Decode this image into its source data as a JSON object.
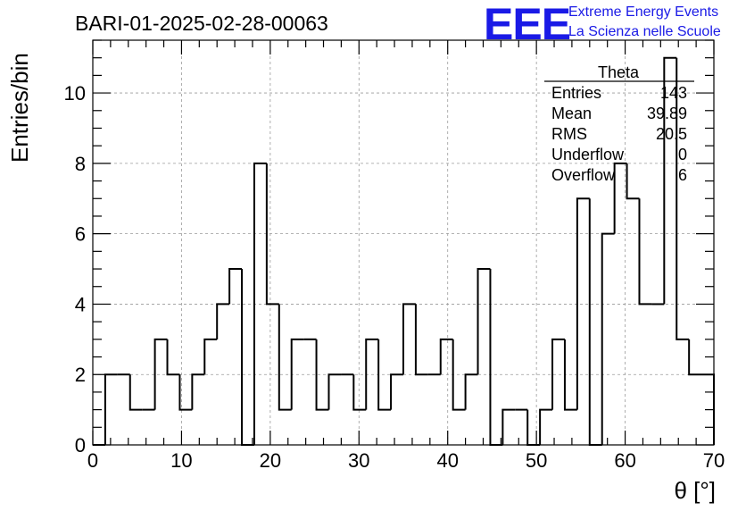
{
  "chart_data": {
    "type": "bar",
    "style": "step-histogram",
    "title": "BARI-01-2025-02-28-00063",
    "xlabel": "θ [°]",
    "ylabel": "Entries/bin",
    "xlim": [
      0,
      70
    ],
    "ylim": [
      0,
      11.5
    ],
    "grid": true,
    "bin_width": 1.4,
    "bin_start": 0,
    "values": [
      0,
      2,
      2,
      1,
      1,
      3,
      2,
      1,
      2,
      3,
      4,
      5,
      0,
      8,
      4,
      1,
      3,
      3,
      1,
      2,
      2,
      1,
      3,
      1,
      2,
      4,
      2,
      2,
      3,
      1,
      2,
      5,
      0,
      1,
      1,
      0,
      1,
      3,
      1,
      7,
      0,
      6,
      8,
      7,
      4,
      4,
      11,
      3,
      2,
      2
    ],
    "xticks": [
      "0",
      "10",
      "20",
      "30",
      "40",
      "50",
      "60",
      "70"
    ],
    "yticks": [
      "0",
      "2",
      "4",
      "6",
      "8",
      "10"
    ]
  },
  "stats_box": {
    "title": "Theta",
    "rows": [
      {
        "label": "Entries",
        "value": "143"
      },
      {
        "label": "Mean",
        "value": "39.89"
      },
      {
        "label": "RMS",
        "value": "20.5"
      },
      {
        "label": "Underflow",
        "value": "0"
      },
      {
        "label": "Overflow",
        "value": "6"
      }
    ]
  },
  "logo": {
    "mark": "EEE",
    "line1": "Extreme Energy Events",
    "line2": "La Scienza nelle Scuole",
    "color": "#1a1ae6"
  }
}
